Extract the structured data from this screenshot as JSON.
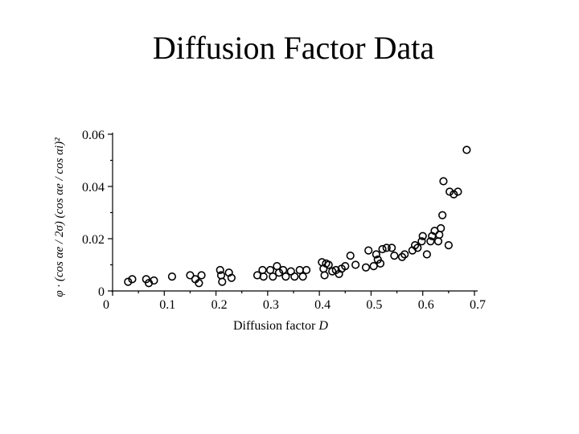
{
  "slide": {
    "title": "Diffusion Factor Data"
  },
  "chart_data": {
    "type": "scatter",
    "title": "",
    "xlabel": "Diffusion factor D",
    "ylabel": "φ · (cos αe / 2σ) (cos αe / cos αi)²",
    "xlim": [
      0,
      0.7
    ],
    "ylim": [
      0,
      0.06
    ],
    "x_ticks": [
      0,
      0.1,
      0.2,
      0.3,
      0.4,
      0.5,
      0.6,
      0.7
    ],
    "x_tick_labels": [
      "0",
      "0.1",
      "0.2",
      "0.3",
      "0.4",
      "0.5",
      "0.6",
      "0.7"
    ],
    "y_ticks": [
      0,
      0.02,
      0.04,
      0.06
    ],
    "y_tick_labels": [
      "0",
      "0.02",
      "0.04",
      "0.06"
    ],
    "grid": false,
    "marker": "open-circle",
    "points": [
      {
        "x": 0.03,
        "y": 0.0035
      },
      {
        "x": 0.038,
        "y": 0.0045
      },
      {
        "x": 0.065,
        "y": 0.0045
      },
      {
        "x": 0.07,
        "y": 0.003
      },
      {
        "x": 0.08,
        "y": 0.004
      },
      {
        "x": 0.115,
        "y": 0.0055
      },
      {
        "x": 0.15,
        "y": 0.006
      },
      {
        "x": 0.16,
        "y": 0.0045
      },
      {
        "x": 0.167,
        "y": 0.003
      },
      {
        "x": 0.172,
        "y": 0.006
      },
      {
        "x": 0.208,
        "y": 0.008
      },
      {
        "x": 0.21,
        "y": 0.006
      },
      {
        "x": 0.212,
        "y": 0.0035
      },
      {
        "x": 0.225,
        "y": 0.007
      },
      {
        "x": 0.23,
        "y": 0.005
      },
      {
        "x": 0.28,
        "y": 0.006
      },
      {
        "x": 0.29,
        "y": 0.008
      },
      {
        "x": 0.292,
        "y": 0.0055
      },
      {
        "x": 0.305,
        "y": 0.008
      },
      {
        "x": 0.31,
        "y": 0.0055
      },
      {
        "x": 0.318,
        "y": 0.0095
      },
      {
        "x": 0.322,
        "y": 0.007
      },
      {
        "x": 0.33,
        "y": 0.008
      },
      {
        "x": 0.335,
        "y": 0.0055
      },
      {
        "x": 0.345,
        "y": 0.0075
      },
      {
        "x": 0.352,
        "y": 0.0055
      },
      {
        "x": 0.362,
        "y": 0.008
      },
      {
        "x": 0.368,
        "y": 0.0055
      },
      {
        "x": 0.375,
        "y": 0.008
      },
      {
        "x": 0.405,
        "y": 0.011
      },
      {
        "x": 0.408,
        "y": 0.0085
      },
      {
        "x": 0.41,
        "y": 0.006
      },
      {
        "x": 0.413,
        "y": 0.0105
      },
      {
        "x": 0.418,
        "y": 0.01
      },
      {
        "x": 0.425,
        "y": 0.0075
      },
      {
        "x": 0.432,
        "y": 0.008
      },
      {
        "x": 0.438,
        "y": 0.0065
      },
      {
        "x": 0.443,
        "y": 0.0085
      },
      {
        "x": 0.45,
        "y": 0.0095
      },
      {
        "x": 0.46,
        "y": 0.0135
      },
      {
        "x": 0.47,
        "y": 0.01
      },
      {
        "x": 0.49,
        "y": 0.009
      },
      {
        "x": 0.495,
        "y": 0.0155
      },
      {
        "x": 0.505,
        "y": 0.0095
      },
      {
        "x": 0.51,
        "y": 0.014
      },
      {
        "x": 0.513,
        "y": 0.012
      },
      {
        "x": 0.518,
        "y": 0.0105
      },
      {
        "x": 0.522,
        "y": 0.016
      },
      {
        "x": 0.53,
        "y": 0.0165
      },
      {
        "x": 0.54,
        "y": 0.0165
      },
      {
        "x": 0.545,
        "y": 0.0135
      },
      {
        "x": 0.56,
        "y": 0.013
      },
      {
        "x": 0.565,
        "y": 0.014
      },
      {
        "x": 0.58,
        "y": 0.0155
      },
      {
        "x": 0.585,
        "y": 0.0175
      },
      {
        "x": 0.59,
        "y": 0.0165
      },
      {
        "x": 0.598,
        "y": 0.019
      },
      {
        "x": 0.6,
        "y": 0.021
      },
      {
        "x": 0.608,
        "y": 0.014
      },
      {
        "x": 0.615,
        "y": 0.019
      },
      {
        "x": 0.618,
        "y": 0.021
      },
      {
        "x": 0.623,
        "y": 0.023
      },
      {
        "x": 0.63,
        "y": 0.019
      },
      {
        "x": 0.632,
        "y": 0.0215
      },
      {
        "x": 0.635,
        "y": 0.024
      },
      {
        "x": 0.638,
        "y": 0.029
      },
      {
        "x": 0.64,
        "y": 0.042
      },
      {
        "x": 0.65,
        "y": 0.0175
      },
      {
        "x": 0.652,
        "y": 0.038
      },
      {
        "x": 0.66,
        "y": 0.037
      },
      {
        "x": 0.668,
        "y": 0.038
      },
      {
        "x": 0.685,
        "y": 0.054
      }
    ]
  }
}
